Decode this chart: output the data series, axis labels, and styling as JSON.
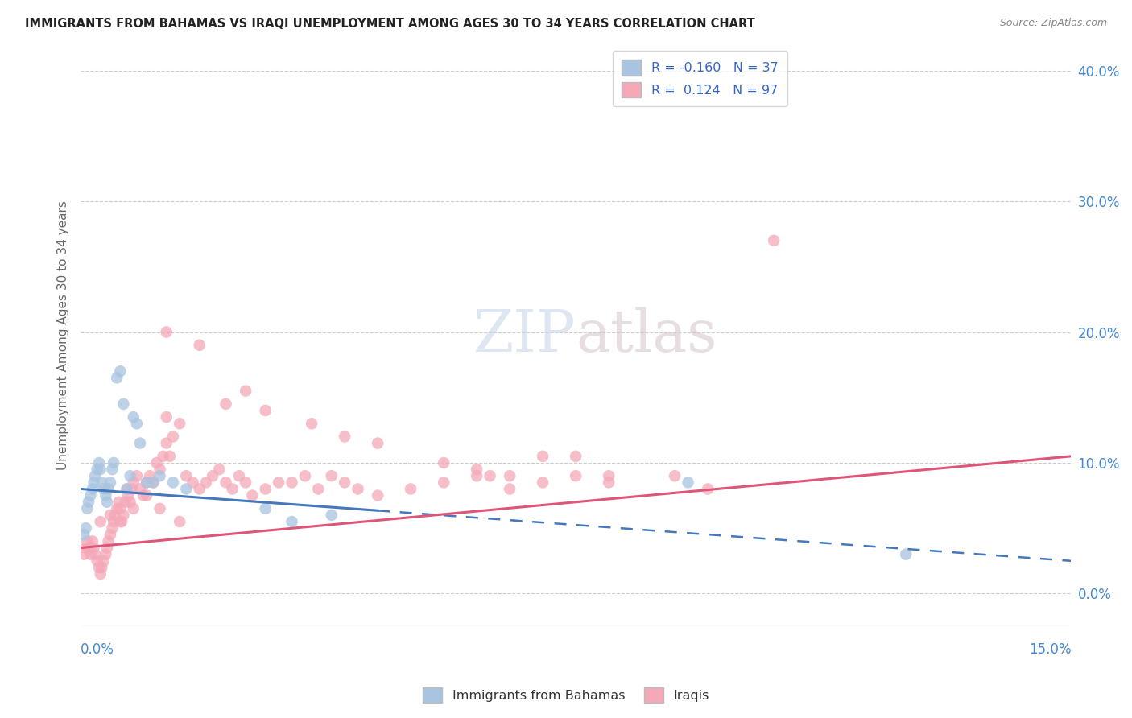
{
  "title": "IMMIGRANTS FROM BAHAMAS VS IRAQI UNEMPLOYMENT AMONG AGES 30 TO 34 YEARS CORRELATION CHART",
  "source": "Source: ZipAtlas.com",
  "ylabel": "Unemployment Among Ages 30 to 34 years",
  "legend_label1": "Immigrants from Bahamas",
  "legend_label2": "Iraqis",
  "R1": "-0.160",
  "N1": "37",
  "R2": "0.124",
  "N2": "97",
  "color_bahamas": "#a8c4e0",
  "color_iraqis": "#f4a8b8",
  "color_line_bahamas": "#4477bb",
  "color_line_iraqis": "#dd5577",
  "background_color": "#ffffff",
  "xmin": 0.0,
  "xmax": 15.0,
  "ymin": -2.5,
  "ymax": 42.0,
  "bahamas_line_x0": 0.0,
  "bahamas_line_y0": 8.0,
  "bahamas_line_x1": 15.0,
  "bahamas_line_y1": 2.5,
  "bahamas_solid_x1": 4.5,
  "iraqis_line_x0": 0.0,
  "iraqis_line_y0": 3.5,
  "iraqis_line_x1": 15.0,
  "iraqis_line_y1": 10.5,
  "bahamas_x": [
    0.05,
    0.08,
    0.1,
    0.12,
    0.15,
    0.18,
    0.2,
    0.22,
    0.25,
    0.28,
    0.3,
    0.32,
    0.35,
    0.38,
    0.4,
    0.42,
    0.45,
    0.48,
    0.5,
    0.55,
    0.6,
    0.65,
    0.7,
    0.75,
    0.8,
    0.85,
    0.9,
    1.0,
    1.1,
    1.2,
    1.4,
    1.6,
    2.8,
    3.2,
    3.8,
    9.2,
    12.5
  ],
  "bahamas_y": [
    4.5,
    5.0,
    6.5,
    7.0,
    7.5,
    8.0,
    8.5,
    9.0,
    9.5,
    10.0,
    9.5,
    8.5,
    8.0,
    7.5,
    7.0,
    8.0,
    8.5,
    9.5,
    10.0,
    16.5,
    17.0,
    14.5,
    8.0,
    9.0,
    13.5,
    13.0,
    11.5,
    8.5,
    8.5,
    9.0,
    8.5,
    8.0,
    6.5,
    5.5,
    6.0,
    8.5,
    3.0
  ],
  "iraqis_x": [
    0.05,
    0.08,
    0.1,
    0.12,
    0.15,
    0.18,
    0.2,
    0.22,
    0.25,
    0.28,
    0.3,
    0.32,
    0.35,
    0.38,
    0.4,
    0.42,
    0.45,
    0.48,
    0.5,
    0.52,
    0.55,
    0.58,
    0.6,
    0.62,
    0.65,
    0.68,
    0.7,
    0.72,
    0.75,
    0.78,
    0.8,
    0.85,
    0.9,
    0.95,
    1.0,
    1.05,
    1.1,
    1.15,
    1.2,
    1.25,
    1.3,
    1.35,
    1.4,
    1.5,
    1.6,
    1.7,
    1.8,
    1.9,
    2.0,
    2.1,
    2.2,
    2.3,
    2.4,
    2.5,
    2.6,
    2.8,
    3.0,
    3.2,
    3.4,
    3.6,
    3.8,
    4.0,
    4.2,
    4.5,
    5.0,
    5.5,
    6.0,
    6.2,
    6.5,
    7.0,
    7.5,
    8.0,
    9.0,
    9.5,
    10.5,
    1.3,
    1.3,
    1.8,
    2.2,
    2.5,
    2.8,
    3.5,
    4.0,
    4.5,
    5.5,
    6.0,
    6.5,
    7.0,
    7.5,
    8.0,
    0.3,
    0.45,
    0.6,
    0.8,
    1.0,
    1.2,
    1.5
  ],
  "iraqis_y": [
    3.0,
    3.5,
    4.0,
    3.5,
    3.0,
    4.0,
    3.5,
    3.0,
    2.5,
    2.0,
    1.5,
    2.0,
    2.5,
    3.0,
    3.5,
    4.0,
    4.5,
    5.0,
    5.5,
    6.0,
    6.5,
    7.0,
    6.5,
    5.5,
    6.0,
    7.0,
    8.0,
    7.5,
    7.0,
    8.0,
    8.5,
    9.0,
    8.0,
    7.5,
    8.5,
    9.0,
    8.5,
    10.0,
    9.5,
    10.5,
    11.5,
    10.5,
    12.0,
    13.0,
    9.0,
    8.5,
    8.0,
    8.5,
    9.0,
    9.5,
    8.5,
    8.0,
    9.0,
    8.5,
    7.5,
    8.0,
    8.5,
    8.5,
    9.0,
    8.0,
    9.0,
    8.5,
    8.0,
    7.5,
    8.0,
    8.5,
    9.0,
    9.0,
    8.0,
    8.5,
    9.0,
    8.5,
    9.0,
    8.0,
    27.0,
    13.5,
    20.0,
    19.0,
    14.5,
    15.5,
    14.0,
    13.0,
    12.0,
    11.5,
    10.0,
    9.5,
    9.0,
    10.5,
    10.5,
    9.0,
    5.5,
    6.0,
    5.5,
    6.5,
    7.5,
    6.5,
    5.5
  ]
}
